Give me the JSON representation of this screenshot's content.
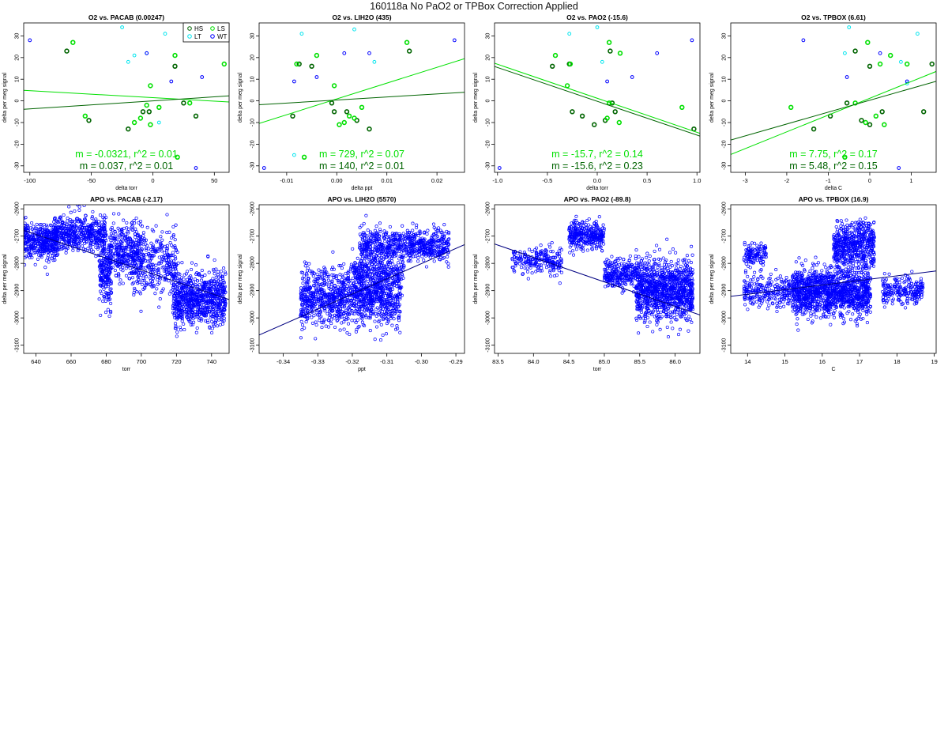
{
  "page": {
    "title": "160118a   No PaO2 or TPBox Correction Applied"
  },
  "colors": {
    "hs": "#006400",
    "ls": "#00e000",
    "lt": "#00e5ee",
    "wt": "#0000ff",
    "axis": "#000000",
    "apo_fit": "#000080"
  },
  "chart_data": [
    {
      "type": "scatter",
      "title": "O2 vs. PACAB (0.00247)",
      "xlabel": "delta torr",
      "ylabel": "delta per meg signal",
      "xlim": [
        -105,
        62
      ],
      "ylim": [
        -33,
        36
      ],
      "xticks": [
        -100,
        -50,
        0,
        50
      ],
      "yticks": [
        -30,
        -20,
        -10,
        0,
        10,
        20,
        30
      ],
      "legend": {
        "placement": "top-right",
        "entries": [
          "HS",
          "LS",
          "LT",
          "WT"
        ]
      },
      "series": [
        {
          "name": "HS",
          "points": [
            [
              -70,
              23
            ],
            [
              -52,
              -9
            ],
            [
              -20,
              -13
            ],
            [
              -8,
              -5
            ],
            [
              -3,
              -5
            ],
            [
              18,
              16
            ],
            [
              25,
              -1
            ],
            [
              35,
              -7
            ]
          ]
        },
        {
          "name": "LS",
          "points": [
            [
              -65,
              27
            ],
            [
              -55,
              -7
            ],
            [
              -15,
              -10
            ],
            [
              -5,
              -2
            ],
            [
              -2,
              7
            ],
            [
              -2,
              -11
            ],
            [
              5,
              -3
            ],
            [
              18,
              21
            ],
            [
              20,
              -26
            ],
            [
              30,
              -1
            ],
            [
              58,
              17
            ],
            [
              -10,
              -8
            ]
          ]
        },
        {
          "name": "LT",
          "points": [
            [
              -25,
              34
            ],
            [
              -20,
              18
            ],
            [
              -15,
              21
            ],
            [
              -5,
              22
            ],
            [
              5,
              -10
            ],
            [
              10,
              31
            ]
          ]
        },
        {
          "name": "WT",
          "points": [
            [
              -100,
              28
            ],
            [
              -5,
              22
            ],
            [
              15,
              9
            ],
            [
              35,
              -31
            ],
            [
              40,
              11
            ]
          ]
        }
      ],
      "fits": [
        {
          "series": "LS",
          "slope": -0.0321,
          "intercept": 1.5,
          "label": "m = -0.0321, r^2 = 0.01"
        },
        {
          "series": "HS",
          "slope": 0.037,
          "intercept": 0.0,
          "label": "m = 0.037, r^2 = 0.01"
        }
      ]
    },
    {
      "type": "scatter",
      "title": "O2 vs. LIH2O (435)",
      "xlabel": "delta ppt",
      "ylabel": "delta per meg signal",
      "xlim": [
        -0.0155,
        0.0255
      ],
      "ylim": [
        -33,
        36
      ],
      "xticks": [
        -0.01,
        0.0,
        0.01,
        0.02
      ],
      "xtick_labels": [
        "-0.01",
        "0.00",
        "0.01",
        "0.02"
      ],
      "yticks": [
        -30,
        -20,
        -10,
        0,
        10,
        20,
        30
      ],
      "series": [
        {
          "name": "HS",
          "points": [
            [
              -0.0075,
              17
            ],
            [
              -0.005,
              16
            ],
            [
              -0.0088,
              -7
            ],
            [
              -0.001,
              -1
            ],
            [
              -0.0005,
              -5
            ],
            [
              0.002,
              -5
            ],
            [
              0.004,
              -9
            ],
            [
              0.0065,
              -13
            ],
            [
              0.0145,
              23
            ]
          ]
        },
        {
          "name": "LS",
          "points": [
            [
              -0.008,
              17
            ],
            [
              -0.004,
              21
            ],
            [
              -0.0065,
              -26
            ],
            [
              -0.0005,
              7
            ],
            [
              0.0005,
              -11
            ],
            [
              0.0015,
              -10
            ],
            [
              0.0035,
              -8
            ],
            [
              0.005,
              -3
            ],
            [
              0.014,
              27
            ],
            [
              0.0025,
              -7
            ]
          ]
        },
        {
          "name": "LT",
          "points": [
            [
              -0.007,
              31
            ],
            [
              0.0035,
              33
            ],
            [
              0.0075,
              18
            ],
            [
              -0.0085,
              -25
            ]
          ]
        },
        {
          "name": "WT",
          "points": [
            [
              -0.0085,
              9
            ],
            [
              -0.004,
              11
            ],
            [
              0.0065,
              22
            ],
            [
              0.0235,
              28
            ],
            [
              -0.0145,
              -31
            ],
            [
              0.0015,
              22
            ]
          ]
        }
      ],
      "fits": [
        {
          "series": "LS",
          "slope": 729,
          "intercept": 0.9,
          "label": "m = 729, r^2 = 0.07"
        },
        {
          "series": "HS",
          "slope": 140,
          "intercept": 0.4,
          "label": "m = 140, r^2 = 0.01"
        }
      ]
    },
    {
      "type": "scatter",
      "title": "O2 vs. PAO2 (-15.6)",
      "xlabel": "delta torr",
      "ylabel": "delta per meg signal",
      "xlim": [
        -1.03,
        1.03
      ],
      "ylim": [
        -33,
        36
      ],
      "xticks": [
        -1.0,
        -0.5,
        0.0,
        0.5,
        1.0
      ],
      "xtick_labels": [
        "-1.0",
        "-0.5",
        "0.0",
        "0.5",
        "1.0"
      ],
      "yticks": [
        -30,
        -20,
        -10,
        0,
        10,
        20,
        30
      ],
      "series": [
        {
          "name": "HS",
          "points": [
            [
              -0.45,
              16
            ],
            [
              -0.28,
              17
            ],
            [
              -0.25,
              -5
            ],
            [
              -0.15,
              -7
            ],
            [
              -0.03,
              -11
            ],
            [
              0.08,
              -9
            ],
            [
              0.15,
              -1
            ],
            [
              0.18,
              -5
            ],
            [
              0.13,
              23
            ],
            [
              0.97,
              -13
            ]
          ]
        },
        {
          "name": "LS",
          "points": [
            [
              -0.42,
              21
            ],
            [
              -0.3,
              7
            ],
            [
              0.1,
              -8
            ],
            [
              0.12,
              27
            ],
            [
              0.22,
              -10
            ],
            [
              0.85,
              -3
            ],
            [
              0.12,
              -1
            ],
            [
              0.23,
              22
            ],
            [
              -0.27,
              17
            ]
          ]
        },
        {
          "name": "LT",
          "points": [
            [
              -0.28,
              31
            ],
            [
              0.0,
              34
            ],
            [
              0.05,
              18
            ]
          ]
        },
        {
          "name": "WT",
          "points": [
            [
              -0.98,
              -31
            ],
            [
              0.6,
              22
            ],
            [
              0.95,
              28
            ],
            [
              0.35,
              11
            ],
            [
              0.1,
              9
            ]
          ]
        }
      ],
      "fits": [
        {
          "series": "LS",
          "slope": -15.7,
          "intercept": 1.2,
          "label": "m = -15.7, r^2 = 0.14"
        },
        {
          "series": "HS",
          "slope": -15.6,
          "intercept": -0.2,
          "label": "m = -15.6, r^2 = 0.23"
        }
      ]
    },
    {
      "type": "scatter",
      "title": "O2 vs. TPBOX (6.61)",
      "xlabel": "delta C",
      "ylabel": "delta per meg signal",
      "xlim": [
        -3.35,
        1.6
      ],
      "ylim": [
        -33,
        36
      ],
      "xticks": [
        -3,
        -2,
        -1,
        0,
        1
      ],
      "yticks": [
        -30,
        -20,
        -10,
        0,
        10,
        20,
        30
      ],
      "series": [
        {
          "name": "HS",
          "points": [
            [
              -1.35,
              -13
            ],
            [
              -0.95,
              -7
            ],
            [
              -0.55,
              -1
            ],
            [
              -0.35,
              23
            ],
            [
              -0.2,
              -9
            ],
            [
              0.0,
              -11
            ],
            [
              0.0,
              16
            ],
            [
              0.3,
              -5
            ],
            [
              1.3,
              -5
            ],
            [
              1.5,
              17
            ]
          ]
        },
        {
          "name": "LS",
          "points": [
            [
              -1.9,
              -3
            ],
            [
              -0.6,
              -26
            ],
            [
              -0.35,
              -1
            ],
            [
              -0.1,
              -10
            ],
            [
              -0.05,
              27
            ],
            [
              0.15,
              -7
            ],
            [
              0.25,
              17
            ],
            [
              0.35,
              -11
            ],
            [
              0.5,
              21
            ],
            [
              0.9,
              17
            ]
          ]
        },
        {
          "name": "LT",
          "points": [
            [
              -0.5,
              34
            ],
            [
              -0.6,
              22
            ],
            [
              0.75,
              18
            ],
            [
              1.15,
              31
            ],
            [
              0.9,
              8
            ]
          ]
        },
        {
          "name": "WT",
          "points": [
            [
              -1.6,
              28
            ],
            [
              -0.55,
              11
            ],
            [
              0.25,
              22
            ],
            [
              0.7,
              -31
            ],
            [
              0.9,
              9
            ]
          ]
        }
      ],
      "fits": [
        {
          "series": "LS",
          "slope": 7.75,
          "intercept": 1.2,
          "label": "m = 7.75, r^2 = 0.17"
        },
        {
          "series": "HS",
          "slope": 5.48,
          "intercept": 0.3,
          "label": "m = 5.48, r^2 = 0.15"
        }
      ]
    },
    {
      "type": "scatter",
      "title": "APO vs. PACAB (-2.17)",
      "xlabel": "torr",
      "ylabel": "delta per meg signal",
      "xlim": [
        633,
        750
      ],
      "ylim": [
        -3130,
        -2585
      ],
      "xticks": [
        640,
        660,
        680,
        700,
        720,
        740
      ],
      "yticks": [
        -3100,
        -3000,
        -2900,
        -2800,
        -2700,
        -2600
      ],
      "clusters": [
        {
          "x": [
            633,
            652
          ],
          "y_center": -2720,
          "y_spread": 60,
          "n": 420
        },
        {
          "x": [
            650,
            680
          ],
          "y_center": -2690,
          "y_spread": 60,
          "n": 500
        },
        {
          "x": [
            676,
            683
          ],
          "y_center": -2830,
          "y_spread": 110,
          "n": 200
        },
        {
          "x": [
            682,
            700
          ],
          "y_center": -2760,
          "y_spread": 90,
          "n": 320
        },
        {
          "x": [
            695,
            720
          ],
          "y_center": -2800,
          "y_spread": 110,
          "n": 330
        },
        {
          "x": [
            718,
            748
          ],
          "y_center": -2930,
          "y_spread": 95,
          "n": 800
        }
      ],
      "fits": [
        {
          "slope": -2.17,
          "intercept": -1305,
          "label": ""
        }
      ]
    },
    {
      "type": "scatter",
      "title": "APO vs. LIH2O (5570)",
      "xlabel": "ppt",
      "ylabel": "delta per meg signal",
      "xlim": [
        -0.347,
        -0.2875
      ],
      "ylim": [
        -3130,
        -2585
      ],
      "xticks": [
        -0.34,
        -0.33,
        -0.32,
        -0.31,
        -0.3,
        -0.29
      ],
      "xtick_labels": [
        "-0.34",
        "-0.33",
        "-0.32",
        "-0.31",
        "-0.30",
        "-0.29"
      ],
      "yticks": [
        -3100,
        -3000,
        -2900,
        -2800,
        -2700,
        -2600
      ],
      "clusters": [
        {
          "x": [
            -0.335,
            -0.306
          ],
          "y_center": -2925,
          "y_spread": 95,
          "n": 1200
        },
        {
          "x": [
            -0.318,
            -0.292
          ],
          "y_center": -2735,
          "y_spread": 55,
          "n": 700
        },
        {
          "x": [
            -0.32,
            -0.305
          ],
          "y_center": -2830,
          "y_spread": 50,
          "n": 250
        }
      ],
      "fits": [
        {
          "slope": 5570,
          "intercept": -1130,
          "label": ""
        }
      ]
    },
    {
      "type": "scatter",
      "title": "APO vs. PAO2 (-89.8)",
      "xlabel": "torr",
      "ylabel": "delta per meg signal",
      "xlim": [
        83.45,
        86.35
      ],
      "ylim": [
        -3130,
        -2585
      ],
      "xticks": [
        83.5,
        84.0,
        84.5,
        85.0,
        85.5,
        86.0
      ],
      "xtick_labels": [
        "83.5",
        "84.0",
        "84.5",
        "85.0",
        "85.5",
        "86.0"
      ],
      "yticks": [
        -3100,
        -3000,
        -2900,
        -2800,
        -2700,
        -2600
      ],
      "clusters": [
        {
          "x": [
            83.7,
            84.4
          ],
          "y_center": -2790,
          "y_spread": 45,
          "n": 220
        },
        {
          "x": [
            84.5,
            85.0
          ],
          "y_center": -2700,
          "y_spread": 45,
          "n": 330
        },
        {
          "x": [
            85.0,
            85.45
          ],
          "y_center": -2840,
          "y_spread": 50,
          "n": 260
        },
        {
          "x": [
            85.45,
            86.25
          ],
          "y_center": -2900,
          "y_spread": 100,
          "n": 1100
        }
      ],
      "fits": [
        {
          "slope": -89.8,
          "intercept": 4765,
          "label": ""
        }
      ]
    },
    {
      "type": "scatter",
      "title": "APO vs. TPBOX (16.9)",
      "xlabel": "C",
      "ylabel": "delta per meg signal",
      "xlim": [
        13.55,
        19.05
      ],
      "ylim": [
        -3130,
        -2585
      ],
      "xticks": [
        14,
        15,
        16,
        17,
        18,
        19
      ],
      "yticks": [
        -3100,
        -3000,
        -2900,
        -2800,
        -2700,
        -2600
      ],
      "clusters": [
        {
          "x": [
            13.9,
            14.5
          ],
          "y_center": -2770,
          "y_spread": 35,
          "n": 120
        },
        {
          "x": [
            13.9,
            15.2
          ],
          "y_center": -2900,
          "y_spread": 55,
          "n": 250
        },
        {
          "x": [
            15.2,
            17.3
          ],
          "y_center": -2905,
          "y_spread": 80,
          "n": 1300
        },
        {
          "x": [
            16.3,
            17.4
          ],
          "y_center": -2730,
          "y_spread": 80,
          "n": 550
        },
        {
          "x": [
            17.6,
            18.7
          ],
          "y_center": -2905,
          "y_spread": 45,
          "n": 220
        }
      ],
      "fits": [
        {
          "slope": 16.9,
          "intercept": -3150,
          "label": ""
        }
      ]
    }
  ]
}
